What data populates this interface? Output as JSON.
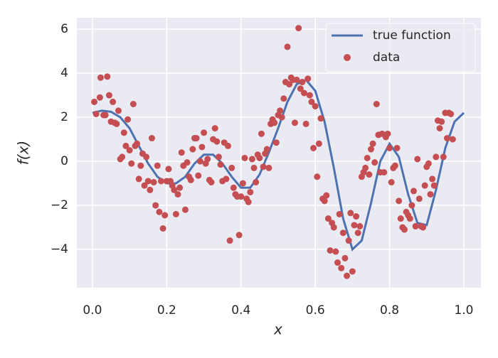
{
  "chart_data": {
    "type": "scatter",
    "xlabel": "x",
    "ylabel": "f(x)",
    "xlim": [
      -0.042,
      1.046
    ],
    "ylim": [
      -5.74,
      6.52
    ],
    "xticks": [
      {
        "value": 0,
        "label": "0.0"
      },
      0.2,
      0.4,
      0.6,
      0.8,
      {
        "value": 1,
        "label": "1.0"
      }
    ],
    "yticks": [
      {
        "value": -4,
        "label": "−4"
      },
      {
        "value": -2,
        "label": "−2"
      },
      0,
      2,
      4,
      6
    ],
    "grid": true,
    "legend": "upper right",
    "series": [
      {
        "name": "true function",
        "type": "line",
        "color": "#4c72b0",
        "x": [
          0,
          0.025,
          0.05,
          0.075,
          0.1,
          0.125,
          0.15,
          0.175,
          0.2,
          0.225,
          0.25,
          0.275,
          0.3,
          0.325,
          0.35,
          0.375,
          0.4,
          0.425,
          0.45,
          0.475,
          0.5,
          0.525,
          0.55,
          0.575,
          0.6,
          0.625,
          0.65,
          0.675,
          0.7,
          0.725,
          0.75,
          0.775,
          0.8,
          0.825,
          0.85,
          0.875,
          0.9,
          0.925,
          0.95,
          0.975,
          1.0
        ],
        "values": [
          2.2,
          2.3,
          2.25,
          2.0,
          1.5,
          0.7,
          -0.1,
          -0.7,
          -1.0,
          -1.0,
          -0.7,
          -0.1,
          0.3,
          0.3,
          -0.1,
          -0.7,
          -1.2,
          -1.2,
          -0.6,
          0.4,
          1.5,
          2.7,
          3.5,
          3.7,
          3.2,
          1.8,
          -0.3,
          -2.6,
          -4.0,
          -3.6,
          -1.9,
          0.0,
          0.8,
          0.2,
          -1.5,
          -2.8,
          -2.9,
          -1.3,
          0.6,
          1.8,
          2.2
        ]
      },
      {
        "name": "data",
        "type": "scatter",
        "color": "#c44e52",
        "x": [
          0.005,
          0.01,
          0.02,
          0.022,
          0.03,
          0.035,
          0.04,
          0.045,
          0.05,
          0.055,
          0.06,
          0.065,
          0.07,
          0.075,
          0.08,
          0.085,
          0.09,
          0.095,
          0.1,
          0.105,
          0.11,
          0.115,
          0.12,
          0.125,
          0.13,
          0.135,
          0.14,
          0.145,
          0.15,
          0.155,
          0.16,
          0.165,
          0.17,
          0.175,
          0.18,
          0.185,
          0.19,
          0.195,
          0.2,
          0.205,
          0.21,
          0.215,
          0.22,
          0.225,
          0.23,
          0.235,
          0.24,
          0.245,
          0.25,
          0.255,
          0.26,
          0.265,
          0.27,
          0.275,
          0.28,
          0.285,
          0.29,
          0.295,
          0.3,
          0.305,
          0.31,
          0.315,
          0.32,
          0.325,
          0.33,
          0.335,
          0.34,
          0.345,
          0.35,
          0.355,
          0.36,
          0.365,
          0.37,
          0.375,
          0.38,
          0.385,
          0.39,
          0.395,
          0.4,
          0.405,
          0.41,
          0.415,
          0.42,
          0.425,
          0.43,
          0.435,
          0.44,
          0.445,
          0.45,
          0.455,
          0.46,
          0.465,
          0.47,
          0.475,
          0.48,
          0.485,
          0.49,
          0.495,
          0.5,
          0.505,
          0.51,
          0.515,
          0.52,
          0.525,
          0.53,
          0.535,
          0.54,
          0.545,
          0.55,
          0.555,
          0.56,
          0.565,
          0.57,
          0.575,
          0.58,
          0.585,
          0.59,
          0.595,
          0.6,
          0.605,
          0.61,
          0.615,
          0.62,
          0.625,
          0.63,
          0.635,
          0.64,
          0.645,
          0.65,
          0.655,
          0.66,
          0.665,
          0.67,
          0.675,
          0.68,
          0.685,
          0.69,
          0.695,
          0.7,
          0.705,
          0.71,
          0.715,
          0.72,
          0.725,
          0.73,
          0.735,
          0.74,
          0.745,
          0.75,
          0.755,
          0.76,
          0.765,
          0.77,
          0.775,
          0.78,
          0.785,
          0.79,
          0.795,
          0.8,
          0.805,
          0.81,
          0.815,
          0.82,
          0.825,
          0.83,
          0.835,
          0.84,
          0.845,
          0.85,
          0.855,
          0.86,
          0.865,
          0.87,
          0.875,
          0.88,
          0.885,
          0.89,
          0.895,
          0.9,
          0.905,
          0.91,
          0.915,
          0.92,
          0.925,
          0.93,
          0.935,
          0.94,
          0.945,
          0.95,
          0.955,
          0.96,
          0.965,
          0.97
        ],
        "values": [
          2.7,
          2.15,
          2.9,
          3.8,
          2.1,
          2.1,
          3.85,
          3.0,
          1.8,
          2.7,
          1.75,
          1.7,
          2.3,
          0.1,
          0.2,
          1.3,
          0.7,
          1.9,
          0.5,
          -0.1,
          2.6,
          0.7,
          0.8,
          -0.8,
          -0.2,
          0.35,
          -1.1,
          0.2,
          -0.9,
          -1.3,
          1.05,
          -0.95,
          -2.0,
          -0.2,
          -2.3,
          -0.9,
          -3.05,
          -2.45,
          -0.9,
          -0.35,
          -0.9,
          -1.1,
          -1.3,
          -2.4,
          -1.5,
          -1.2,
          0.4,
          -0.2,
          -2.2,
          -0.05,
          -0.7,
          -0.85,
          0.55,
          1.05,
          1.05,
          -0.65,
          0.0,
          0.65,
          1.3,
          -0.1,
          0.1,
          -0.85,
          -0.95,
          1.0,
          1.5,
          0.9,
          0.2,
          -0.15,
          -0.9,
          0.85,
          -0.8,
          0.7,
          -3.6,
          -0.3,
          -1.2,
          -1.5,
          -1.6,
          -3.35,
          -1.6,
          -1.0,
          0.15,
          -1.7,
          -1.85,
          -1.4,
          0.1,
          -0.3,
          -0.95,
          0.3,
          0.15,
          1.25,
          -0.25,
          0.35,
          0.55,
          -0.3,
          1.7,
          1.9,
          1.75,
          0.85,
          2.1,
          2.3,
          2.0,
          2.85,
          3.6,
          5.2,
          3.5,
          3.8,
          3.7,
          1.75,
          3.7,
          6.05,
          3.3,
          3.6,
          3.1,
          1.7,
          3.75,
          3.0,
          2.7,
          0.6,
          2.5,
          -0.7,
          0.8,
          1.95,
          -1.7,
          -1.8,
          -1.55,
          -2.6,
          -4.05,
          -2.8,
          -3.0,
          -4.1,
          -4.6,
          -2.4,
          -4.85,
          -3.25,
          -4.4,
          -5.2,
          -3.6,
          -2.35,
          -5.0,
          -2.9,
          -2.5,
          -3.25,
          -2.95,
          -0.7,
          -0.5,
          -0.3,
          0.15,
          -0.6,
          0.55,
          0.8,
          -0.05,
          2.6,
          1.2,
          -0.5,
          1.25,
          -0.5,
          1.1,
          1.25,
          0.6,
          -0.95,
          -0.3,
          -0.2,
          0.6,
          -1.8,
          -2.6,
          -3.0,
          -3.1,
          -2.3,
          -2.45,
          -2.6,
          -2.0,
          -1.35,
          -2.95,
          0.1,
          -1.7,
          -2.95,
          -3.0,
          -1.1,
          -0.25,
          -0.1,
          -1.5,
          -0.8,
          -1.1,
          0.2,
          1.85,
          1.5,
          1.8,
          0.2,
          2.2,
          1.05,
          2.2,
          2.15,
          1.0
        ]
      }
    ]
  }
}
